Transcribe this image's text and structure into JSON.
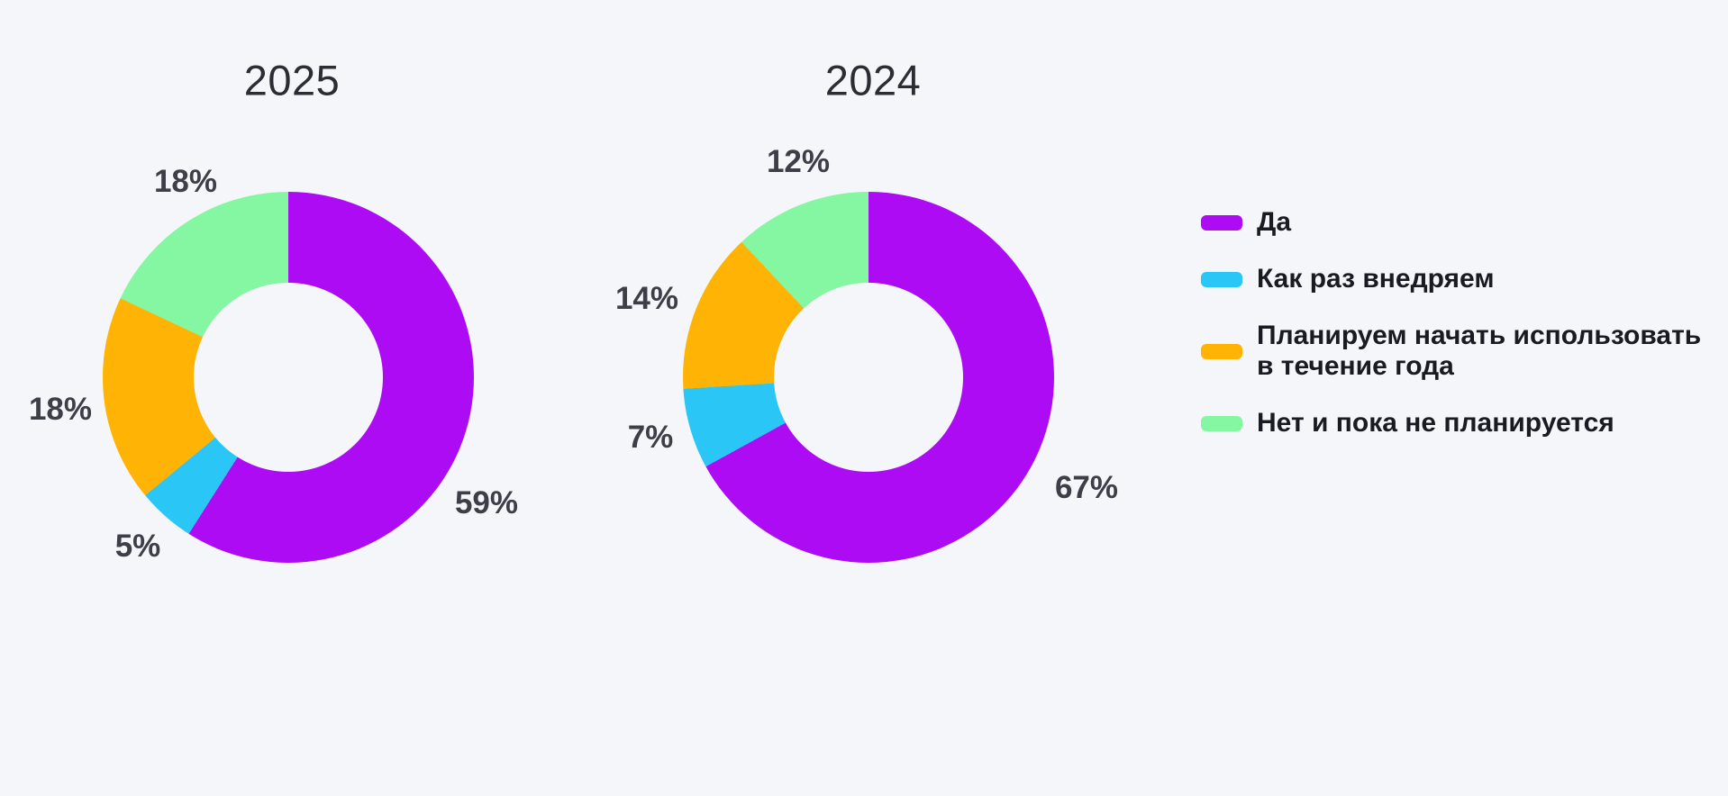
{
  "background_color": "#F5F6FA",
  "chart_data": [
    {
      "type": "pie",
      "donut": true,
      "title": "2025",
      "categories": [
        "Да",
        "Как раз внедряем",
        "Планируем начать использовать в течение года",
        "Нет и пока не планируется"
      ],
      "values": [
        59,
        5,
        18,
        18
      ],
      "display_labels": [
        "59%",
        "5%",
        "18%",
        "18%"
      ],
      "unit": "%",
      "colors": [
        "#AE0BF5",
        "#2AC6F6",
        "#FFB405",
        "#85F7A3"
      ],
      "start_angle_deg": 0,
      "direction": "clockwise",
      "inner_radius_ratio": 0.51
    },
    {
      "type": "pie",
      "donut": true,
      "title": "2024",
      "categories": [
        "Да",
        "Как раз внедряем",
        "Планируем начать использовать в течение года",
        "Нет и пока не планируется"
      ],
      "values": [
        67,
        7,
        14,
        12
      ],
      "display_labels": [
        "67%",
        "7%",
        "14%",
        "12%"
      ],
      "unit": "%",
      "colors": [
        "#AE0BF5",
        "#2AC6F6",
        "#FFB405",
        "#85F7A3"
      ],
      "start_angle_deg": 0,
      "direction": "clockwise",
      "inner_radius_ratio": 0.51
    }
  ],
  "legend": {
    "position": "right",
    "items": [
      {
        "label": "Да",
        "color": "#AE0BF5"
      },
      {
        "label": "Как раз внедряем",
        "color": "#2AC6F6"
      },
      {
        "label": "Планируем начать использовать в течение года",
        "color": "#FFB405"
      },
      {
        "label": "Нет и пока не планируется",
        "color": "#85F7A3"
      }
    ]
  }
}
